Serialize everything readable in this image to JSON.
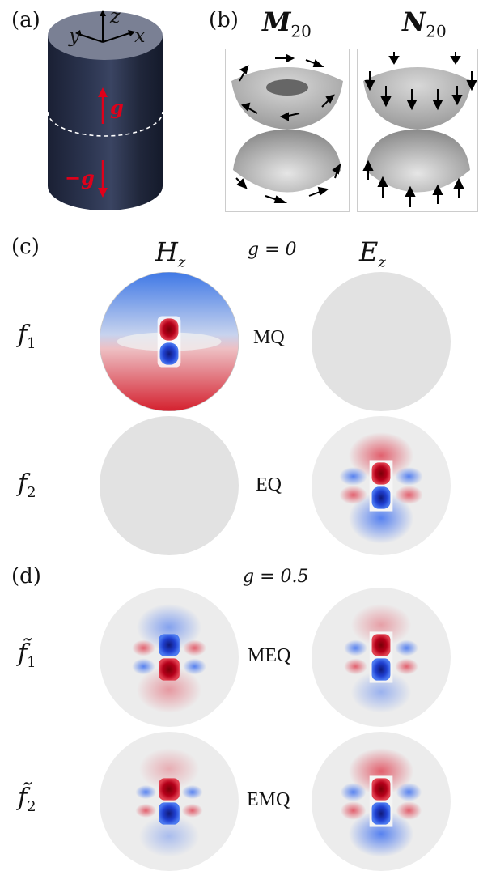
{
  "panels": {
    "a": {
      "label": "(a)"
    },
    "b": {
      "label": "(b)",
      "left_title": "M",
      "left_sub": "20",
      "right_title": "N",
      "right_sub": "20"
    },
    "c": {
      "label": "(c)",
      "col_left": "H",
      "col_left_sub": "z",
      "col_right": "E",
      "col_right_sub": "z",
      "g_text": "g = 0"
    },
    "d": {
      "label": "(d)",
      "g_text": "g = 0.5"
    }
  },
  "axes": {
    "x": "x",
    "y": "y",
    "z": "z",
    "g_up": "g",
    "g_down": "−g"
  },
  "rows": {
    "c1": {
      "label": "f",
      "sub": "1",
      "mode": "MQ"
    },
    "c2": {
      "label": "f",
      "sub": "2",
      "mode": "EQ"
    },
    "d1": {
      "label": "f̃",
      "sub": "1",
      "mode": "MEQ"
    },
    "d2": {
      "label": "f̃",
      "sub": "2",
      "mode": "EMQ"
    }
  },
  "colors": {
    "positive": "#c8102e",
    "negative": "#1f4fd1",
    "zero": "#e2e2e2",
    "cylinder": "#1e2436",
    "arrow_g": "#e0001a"
  }
}
